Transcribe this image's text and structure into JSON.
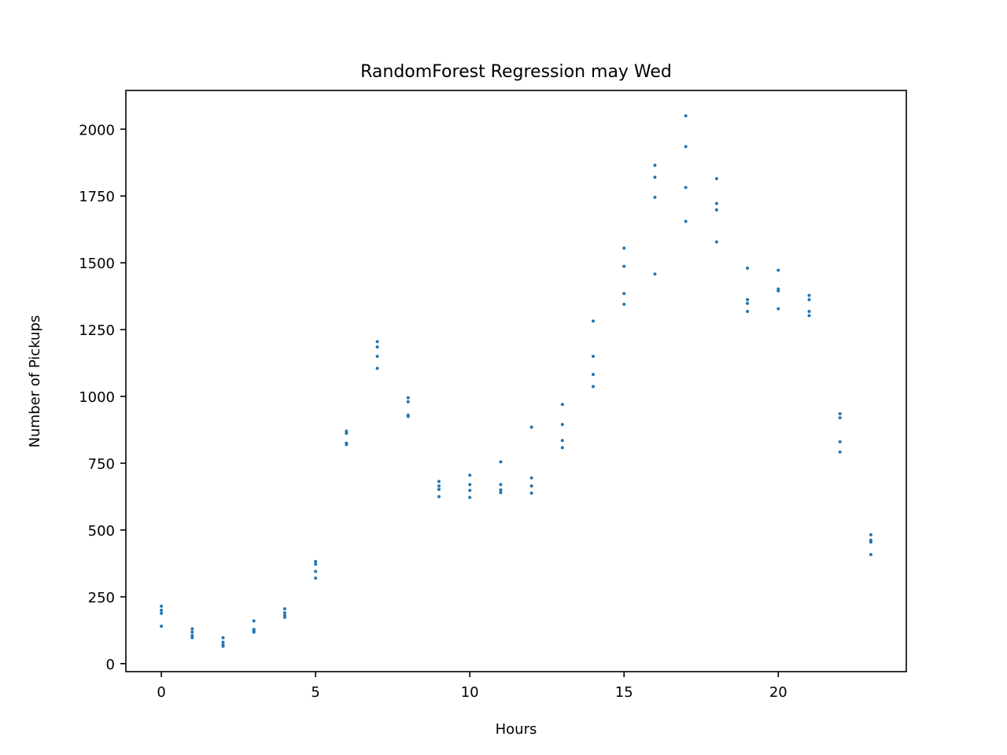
{
  "chart_data": {
    "type": "scatter",
    "title": "RandomForest Regression may Wed",
    "xlabel": "Hours",
    "ylabel": "Number of Pickups",
    "xlim": [
      -1.15,
      24.15
    ],
    "ylim": [
      -30,
      2145
    ],
    "xticks": [
      0,
      5,
      10,
      15,
      20
    ],
    "yticks": [
      0,
      250,
      500,
      750,
      1000,
      1250,
      1500,
      1750,
      2000
    ],
    "grid": false,
    "marker_color": "#1f77b4",
    "series": [
      {
        "points": [
          [
            0,
            215
          ],
          [
            0,
            200
          ],
          [
            0,
            188
          ],
          [
            0,
            140
          ],
          [
            1,
            130
          ],
          [
            1,
            118
          ],
          [
            1,
            105
          ],
          [
            1,
            97
          ],
          [
            2,
            97
          ],
          [
            2,
            80
          ],
          [
            2,
            70
          ],
          [
            2,
            65
          ],
          [
            3,
            160
          ],
          [
            3,
            128
          ],
          [
            3,
            122
          ],
          [
            3,
            118
          ],
          [
            4,
            205
          ],
          [
            4,
            190
          ],
          [
            4,
            180
          ],
          [
            4,
            173
          ],
          [
            5,
            382
          ],
          [
            5,
            372
          ],
          [
            5,
            345
          ],
          [
            5,
            320
          ],
          [
            6,
            870
          ],
          [
            6,
            862
          ],
          [
            6,
            825
          ],
          [
            6,
            820
          ],
          [
            7,
            1205
          ],
          [
            7,
            1185
          ],
          [
            7,
            1150
          ],
          [
            7,
            1105
          ],
          [
            8,
            995
          ],
          [
            8,
            980
          ],
          [
            8,
            930
          ],
          [
            8,
            925
          ],
          [
            9,
            682
          ],
          [
            9,
            665
          ],
          [
            9,
            652
          ],
          [
            9,
            625
          ],
          [
            10,
            705
          ],
          [
            10,
            670
          ],
          [
            10,
            648
          ],
          [
            10,
            622
          ],
          [
            11,
            755
          ],
          [
            11,
            670
          ],
          [
            11,
            650
          ],
          [
            11,
            640
          ],
          [
            12,
            885
          ],
          [
            12,
            695
          ],
          [
            12,
            665
          ],
          [
            12,
            638
          ],
          [
            13,
            970
          ],
          [
            13,
            895
          ],
          [
            13,
            835
          ],
          [
            13,
            808
          ],
          [
            14,
            1282
          ],
          [
            14,
            1150
          ],
          [
            14,
            1082
          ],
          [
            14,
            1037
          ],
          [
            15,
            1555
          ],
          [
            15,
            1487
          ],
          [
            15,
            1385
          ],
          [
            15,
            1345
          ],
          [
            16,
            1865
          ],
          [
            16,
            1820
          ],
          [
            16,
            1745
          ],
          [
            16,
            1458
          ],
          [
            17,
            2050
          ],
          [
            17,
            1935
          ],
          [
            17,
            1782
          ],
          [
            17,
            1655
          ],
          [
            18,
            1815
          ],
          [
            18,
            1722
          ],
          [
            18,
            1698
          ],
          [
            18,
            1578
          ],
          [
            19,
            1480
          ],
          [
            19,
            1362
          ],
          [
            19,
            1348
          ],
          [
            19,
            1318
          ],
          [
            20,
            1472
          ],
          [
            20,
            1402
          ],
          [
            20,
            1395
          ],
          [
            20,
            1328
          ],
          [
            21,
            1378
          ],
          [
            21,
            1362
          ],
          [
            21,
            1318
          ],
          [
            21,
            1302
          ],
          [
            22,
            935
          ],
          [
            22,
            920
          ],
          [
            22,
            830
          ],
          [
            22,
            792
          ],
          [
            23,
            482
          ],
          [
            23,
            462
          ],
          [
            23,
            455
          ],
          [
            23,
            408
          ]
        ]
      }
    ]
  }
}
